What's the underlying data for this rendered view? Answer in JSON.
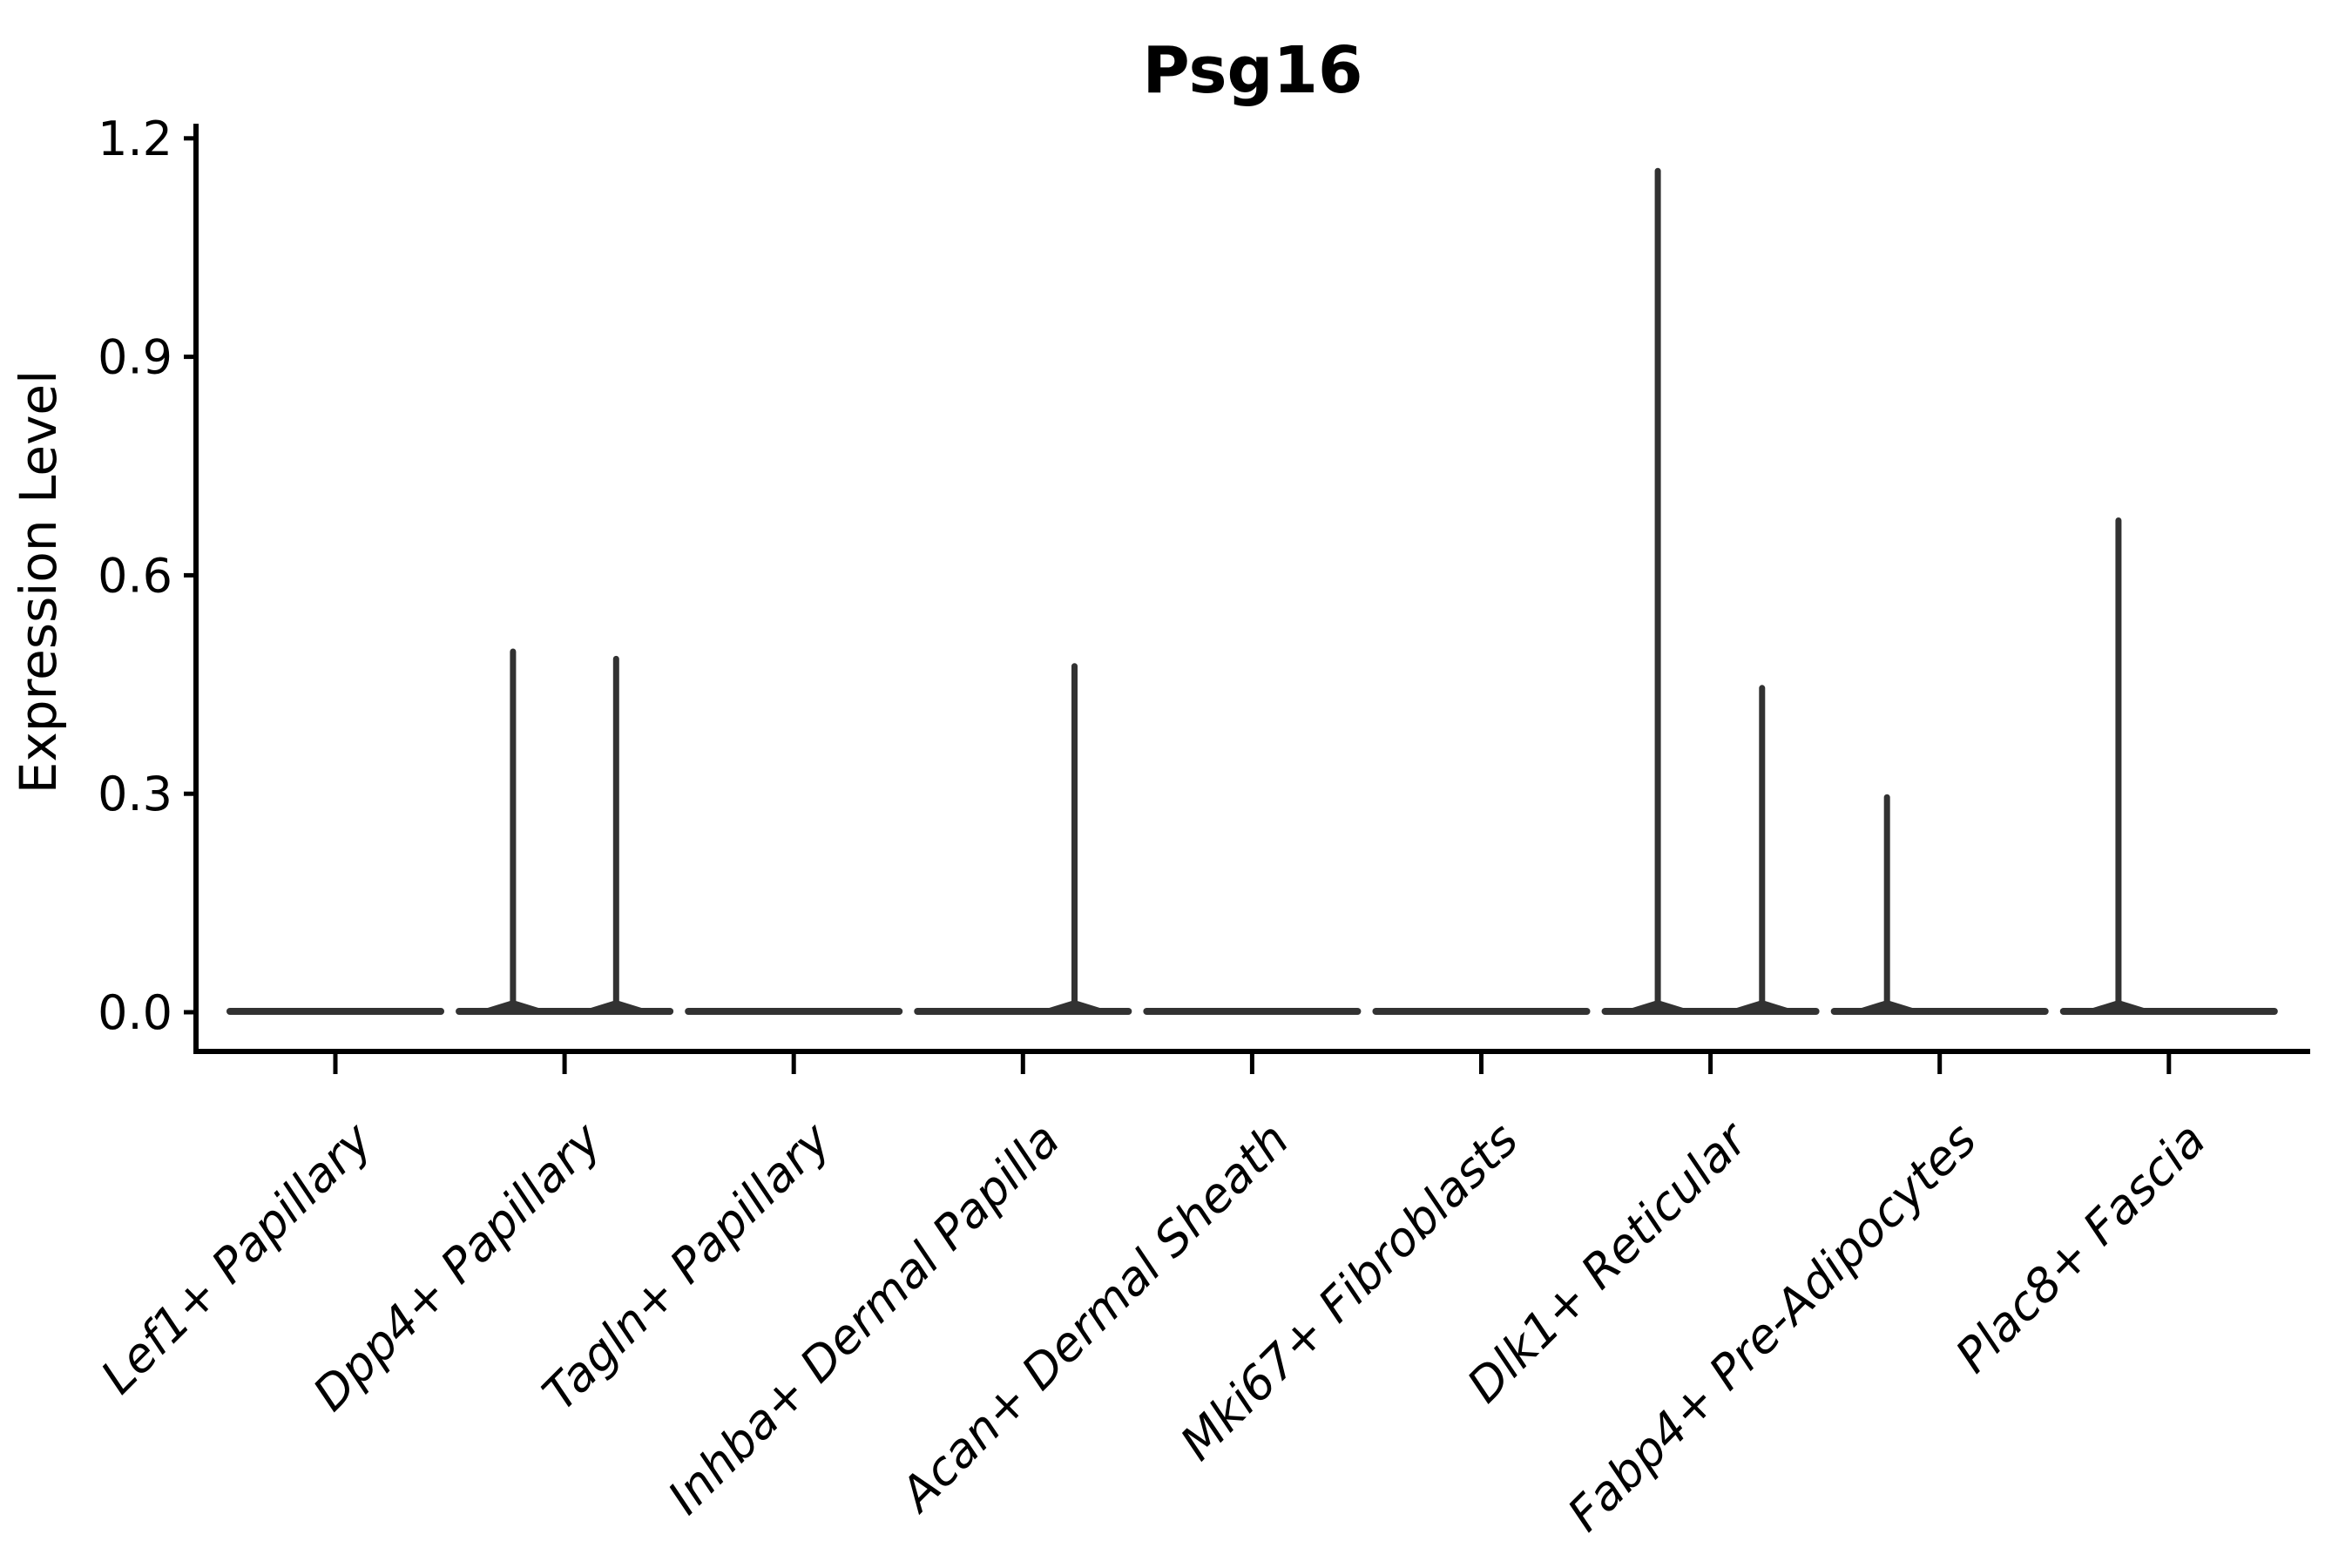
{
  "chart_data": {
    "type": "violin",
    "title": "Psg16",
    "xlabel": "",
    "ylabel": "Expression Level",
    "ylim": [
      0.0,
      1.2
    ],
    "yticks": [
      0.0,
      0.3,
      0.6,
      0.9,
      1.2
    ],
    "ytick_labels": [
      "0.0",
      "0.3",
      "0.6",
      "0.9",
      "1.2"
    ],
    "grid": false,
    "legend_position": "none",
    "categories": [
      "Lef1+ Papillary",
      "Dpp4+ Papillary",
      "Tagln+ Papillary",
      "Inhba+ Dermal Papilla",
      "Acan+ Dermal Sheath",
      "Mki67+ Fibroblasts",
      "Dlk1+ Reticular",
      "Fabp4+ Pre-Adipocytes",
      "Plac8+ Fascia"
    ],
    "violins": [
      {
        "category": "Lef1+ Papillary",
        "base_value": 0.0,
        "spikes": []
      },
      {
        "category": "Dpp4+ Papillary",
        "base_value": 0.0,
        "spikes": [
          {
            "offset": -0.225,
            "value": 0.5
          },
          {
            "offset": 0.225,
            "value": 0.49
          }
        ]
      },
      {
        "category": "Tagln+ Papillary",
        "base_value": 0.0,
        "spikes": []
      },
      {
        "category": "Inhba+ Dermal Papilla",
        "base_value": 0.0,
        "spikes": [
          {
            "offset": 0.225,
            "value": 0.48
          }
        ]
      },
      {
        "category": "Acan+ Dermal Sheath",
        "base_value": 0.0,
        "spikes": []
      },
      {
        "category": "Mki67+ Fibroblasts",
        "base_value": 0.0,
        "spikes": []
      },
      {
        "category": "Dlk1+ Reticular",
        "base_value": 0.0,
        "spikes": [
          {
            "offset": -0.23,
            "value": 1.16
          },
          {
            "offset": 0.225,
            "value": 0.45
          }
        ]
      },
      {
        "category": "Fabp4+ Pre-Adipocytes",
        "base_value": 0.0,
        "spikes": [
          {
            "offset": -0.23,
            "value": 0.3
          }
        ]
      },
      {
        "category": "Plac8+ Fascia",
        "base_value": 0.0,
        "spikes": [
          {
            "offset": -0.22,
            "value": 0.68
          }
        ]
      }
    ],
    "base_width_frac": 0.92,
    "colors": {
      "violin": "#323232",
      "axis": "#000000",
      "text": "#000000",
      "background": "#ffffff"
    }
  }
}
